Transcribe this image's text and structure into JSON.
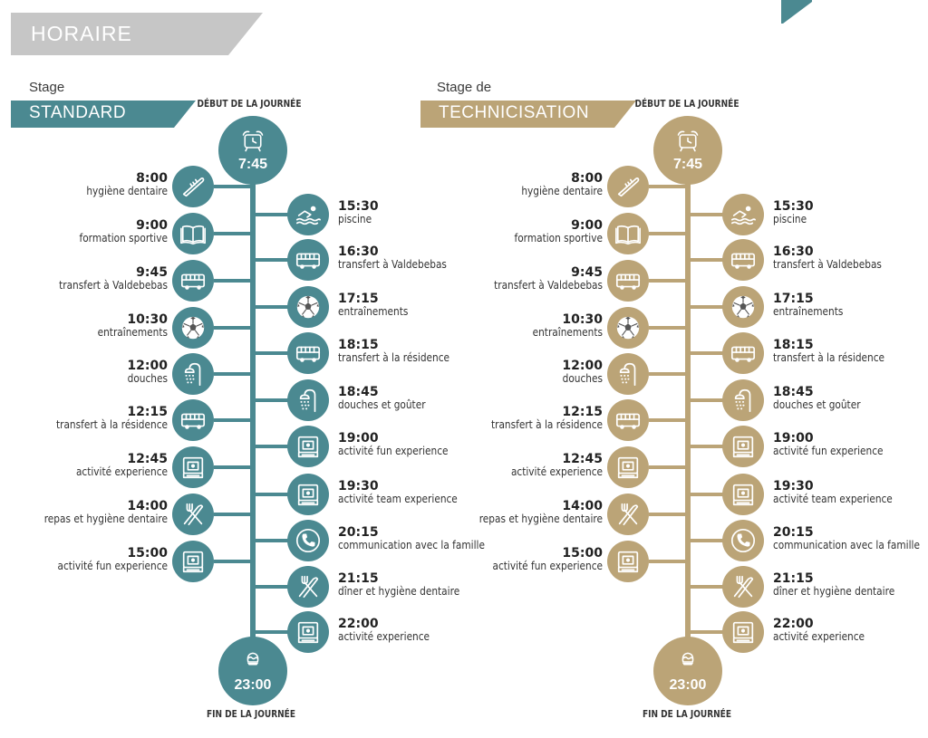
{
  "header": {
    "title": "HORAIRE"
  },
  "colors": {
    "header_gray": "#c6c6c6",
    "standard": "#4b8991",
    "technicisation": "#bba477"
  },
  "labels": {
    "start": "DÉBUT DE LA JOURNÉE",
    "end": "FIN DE LA JOURNÉE"
  },
  "panels": [
    {
      "id": "standard",
      "stage_label": "Stage",
      "stage_name": "STANDARD",
      "start_time": "7:45",
      "end_time": "23:00",
      "left_events": [
        {
          "time": "8:00",
          "label": "hygiène dentaire",
          "icon": "toothbrush-icon"
        },
        {
          "time": "9:00",
          "label": "formation sportive",
          "icon": "book-icon"
        },
        {
          "time": "9:45",
          "label": "transfert à Valdebebas",
          "icon": "bus-icon"
        },
        {
          "time": "10:30",
          "label": "entraînements",
          "icon": "soccer-ball-icon"
        },
        {
          "time": "12:00",
          "label": "douches",
          "icon": "shower-icon"
        },
        {
          "time": "12:15",
          "label": "transfert à la résidence",
          "icon": "bus-icon"
        },
        {
          "time": "12:45",
          "label": "activité experience",
          "icon": "camera-icon"
        },
        {
          "time": "14:00",
          "label": "repas et hygiène dentaire",
          "icon": "fork-knife-icon"
        },
        {
          "time": "15:00",
          "label": "activité fun experience",
          "icon": "camera-icon"
        }
      ],
      "right_events": [
        {
          "time": "15:30",
          "label": "piscine",
          "icon": "swimmer-icon"
        },
        {
          "time": "16:30",
          "label": "transfert à Valdebebas",
          "icon": "bus-icon"
        },
        {
          "time": "17:15",
          "label": "entraînements",
          "icon": "soccer-ball-icon"
        },
        {
          "time": "18:15",
          "label": "transfert à la résidence",
          "icon": "bus-icon"
        },
        {
          "time": "18:45",
          "label": "douches et goûter",
          "icon": "shower-icon"
        },
        {
          "time": "19:00",
          "label": "activité fun experience",
          "icon": "camera-icon"
        },
        {
          "time": "19:30",
          "label": "activité team experience",
          "icon": "camera-icon"
        },
        {
          "time": "20:15",
          "label": "communication avec la famille",
          "icon": "phone-icon"
        },
        {
          "time": "21:15",
          "label": "dîner et hygiène dentaire",
          "icon": "fork-knife-icon"
        },
        {
          "time": "22:00",
          "label": "activité experience",
          "icon": "camera-icon"
        }
      ]
    },
    {
      "id": "technicisation",
      "stage_label": "Stage de",
      "stage_name": "TECHNICISATION",
      "start_time": "7:45",
      "end_time": "23:00",
      "left_events": [
        {
          "time": "8:00",
          "label": "hygiène dentaire",
          "icon": "toothbrush-icon"
        },
        {
          "time": "9:00",
          "label": "formation sportive",
          "icon": "book-icon"
        },
        {
          "time": "9:45",
          "label": "transfert à Valdebebas",
          "icon": "bus-icon"
        },
        {
          "time": "10:30",
          "label": "entraînements",
          "icon": "soccer-ball-icon"
        },
        {
          "time": "12:00",
          "label": "douches",
          "icon": "shower-icon"
        },
        {
          "time": "12:15",
          "label": "transfert à la résidence",
          "icon": "bus-icon"
        },
        {
          "time": "12:45",
          "label": "activité experience",
          "icon": "camera-icon"
        },
        {
          "time": "14:00",
          "label": "repas et hygiène dentaire",
          "icon": "fork-knife-icon"
        },
        {
          "time": "15:00",
          "label": "activité fun experience",
          "icon": "camera-icon"
        }
      ],
      "right_events": [
        {
          "time": "15:30",
          "label": "piscine",
          "icon": "swimmer-icon"
        },
        {
          "time": "16:30",
          "label": "transfert à Valdebebas",
          "icon": "bus-icon"
        },
        {
          "time": "17:15",
          "label": "entraînements",
          "icon": "soccer-ball-icon"
        },
        {
          "time": "18:15",
          "label": "transfert à la résidence",
          "icon": "bus-icon"
        },
        {
          "time": "18:45",
          "label": "douches et goûter",
          "icon": "shower-icon"
        },
        {
          "time": "19:00",
          "label": "activité fun experience",
          "icon": "camera-icon"
        },
        {
          "time": "19:30",
          "label": "activité team experience",
          "icon": "camera-icon"
        },
        {
          "time": "20:15",
          "label": "communication avec la famille",
          "icon": "phone-icon"
        },
        {
          "time": "21:15",
          "label": "dîner et hygiène dentaire",
          "icon": "fork-knife-icon"
        },
        {
          "time": "22:00",
          "label": "activité experience",
          "icon": "camera-icon"
        }
      ]
    }
  ]
}
